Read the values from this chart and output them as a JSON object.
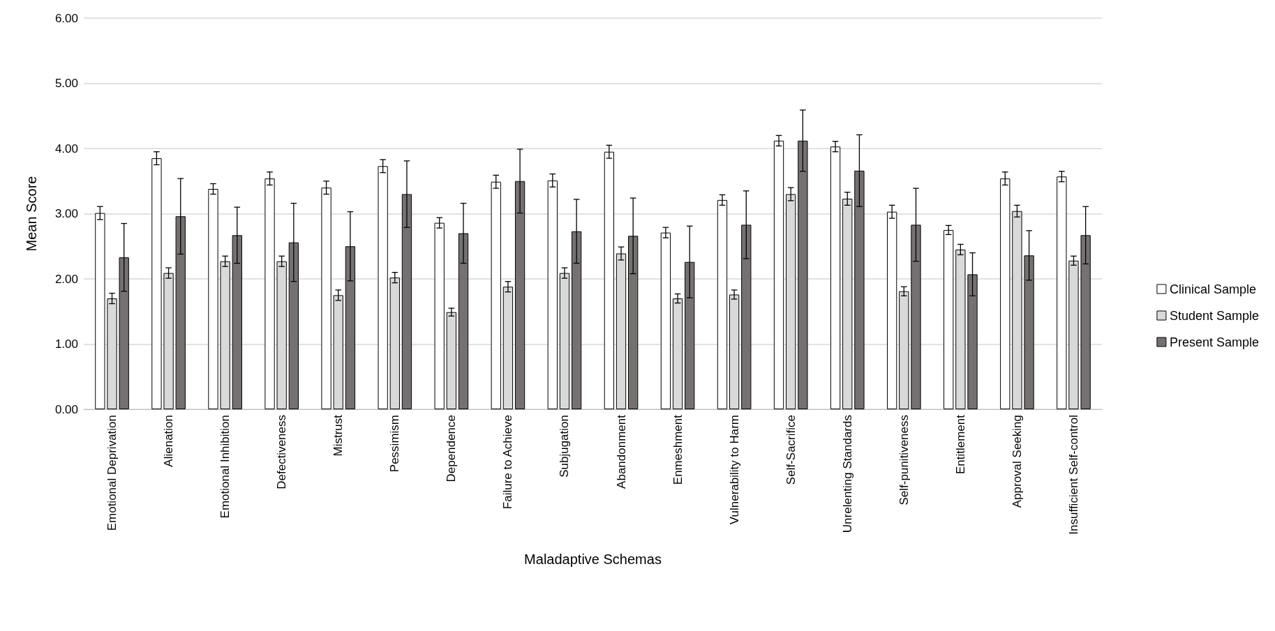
{
  "chart_data": {
    "type": "bar",
    "xlabel": "Maladaptive Schemas",
    "ylabel": "Mean Score",
    "categories": [
      "Emotional Deprivation",
      "Alienation",
      "Emotional Inhibition",
      "Defectiveness",
      "Mistrust",
      "Pessimism",
      "Dependence",
      "Failure to Achieve",
      "Subjugation",
      "Abandonment",
      "Enmeshment",
      "Vulnerability to Harm",
      "Self-Sacrifice",
      "Unrelenting Standards",
      "Self-punitiveness",
      "Entitlement",
      "Approval Seeking",
      "Insufficient Self-control"
    ],
    "series": [
      {
        "name": "Clinical Sample",
        "color": "#ffffff",
        "values": [
          3.01,
          3.85,
          3.38,
          3.54,
          3.4,
          3.73,
          2.86,
          3.49,
          3.51,
          3.95,
          2.71,
          3.21,
          4.12,
          4.03,
          3.03,
          2.75,
          3.54,
          3.57
        ],
        "errors": [
          0.1,
          0.1,
          0.08,
          0.1,
          0.1,
          0.1,
          0.08,
          0.1,
          0.1,
          0.1,
          0.08,
          0.08,
          0.08,
          0.08,
          0.1,
          0.07,
          0.1,
          0.08
        ]
      },
      {
        "name": "Student Sample",
        "color": "#d9d9d9",
        "values": [
          1.7,
          2.09,
          2.27,
          2.27,
          1.75,
          2.02,
          1.49,
          1.88,
          2.09,
          2.39,
          1.7,
          1.76,
          3.3,
          3.23,
          1.81,
          2.45,
          3.04,
          2.28
        ],
        "errors": [
          0.08,
          0.08,
          0.08,
          0.08,
          0.08,
          0.08,
          0.06,
          0.08,
          0.08,
          0.1,
          0.07,
          0.07,
          0.1,
          0.1,
          0.07,
          0.08,
          0.09,
          0.07
        ]
      },
      {
        "name": "Present Sample",
        "color": "#767171",
        "values": [
          2.33,
          2.96,
          2.67,
          2.56,
          2.5,
          3.3,
          2.7,
          3.5,
          2.73,
          2.66,
          2.26,
          2.83,
          4.12,
          3.66,
          2.83,
          2.07,
          2.36,
          2.67
        ],
        "errors": [
          0.52,
          0.58,
          0.43,
          0.6,
          0.53,
          0.51,
          0.46,
          0.49,
          0.49,
          0.58,
          0.55,
          0.52,
          0.47,
          0.55,
          0.56,
          0.33,
          0.38,
          0.44
        ]
      }
    ],
    "ylim": [
      0,
      6
    ],
    "yticks": [
      {
        "value": 0,
        "label": "0.00"
      },
      {
        "value": 1,
        "label": "1.00"
      },
      {
        "value": 2,
        "label": "2.00"
      },
      {
        "value": 3,
        "label": "3.00"
      },
      {
        "value": 4,
        "label": "4.00"
      },
      {
        "value": 5,
        "label": "5.00"
      },
      {
        "value": 6,
        "label": "6.00"
      }
    ],
    "grid": "y",
    "legend": "right"
  }
}
